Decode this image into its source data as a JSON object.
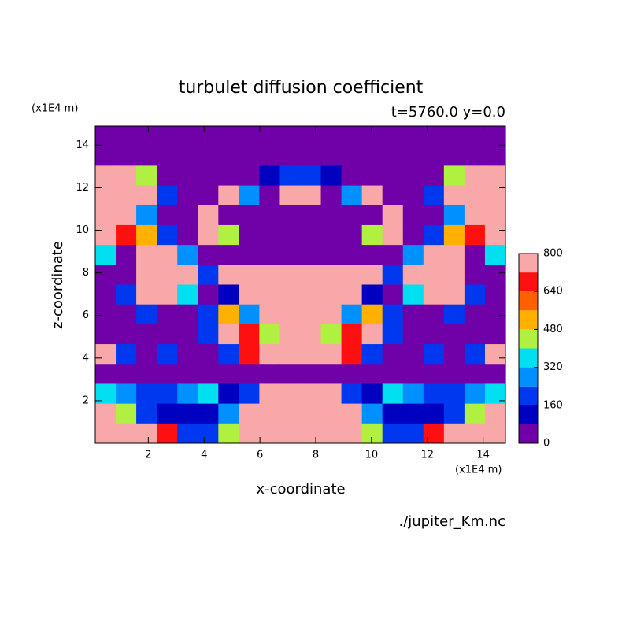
{
  "chart_data": {
    "type": "contour",
    "title": "turbulet diffusion coefficient",
    "subtitle": "t=5760.0 y=0.0",
    "x_label": "x-coordinate",
    "y_label": "z-coordinate",
    "x_unit": "(x1E4 m)",
    "y_unit": "(x1E4 m)",
    "source": "./jupiter_Km.nc",
    "xlim": [
      0.1,
      14.8
    ],
    "ylim": [
      0,
      14.9
    ],
    "xticks": [
      2,
      4,
      6,
      8,
      10,
      12,
      14
    ],
    "yticks": [
      2,
      4,
      6,
      8,
      10,
      12,
      14
    ],
    "levels": [
      0,
      80,
      160,
      240,
      320,
      400,
      480,
      560,
      640,
      720
    ],
    "colors": [
      "#7000a8",
      "#0000c0",
      "#0038f0",
      "#0090ff",
      "#00e0f0",
      "#b0f040",
      "#ffb000",
      "#ff6000",
      "#ff1010",
      "#f8a8a8"
    ],
    "colorbar_lim": [
      0,
      800
    ],
    "colorbar_ticks": [
      0,
      160,
      320,
      480,
      640,
      800
    ],
    "z": [
      [
        0,
        0,
        0,
        0,
        0,
        0,
        0,
        0,
        0,
        0,
        0,
        0,
        0,
        0,
        0,
        0,
        0,
        0,
        0,
        0
      ],
      [
        0,
        0,
        0,
        0,
        0,
        0,
        0,
        0,
        0,
        0,
        0,
        0,
        0,
        0,
        0,
        0,
        0,
        0,
        0,
        0
      ],
      [
        720,
        800,
        400,
        0,
        0,
        0,
        0,
        0,
        80,
        160,
        160,
        80,
        0,
        0,
        0,
        0,
        0,
        400,
        800,
        720
      ],
      [
        800,
        800,
        800,
        160,
        0,
        0,
        800,
        240,
        0,
        800,
        800,
        0,
        240,
        800,
        0,
        0,
        160,
        800,
        800,
        800
      ],
      [
        800,
        800,
        240,
        0,
        0,
        800,
        0,
        0,
        0,
        0,
        0,
        0,
        0,
        0,
        800,
        0,
        0,
        240,
        800,
        800
      ],
      [
        800,
        640,
        480,
        160,
        0,
        800,
        400,
        0,
        0,
        0,
        0,
        0,
        0,
        400,
        800,
        0,
        160,
        480,
        640,
        800
      ],
      [
        320,
        0,
        800,
        800,
        240,
        0,
        0,
        0,
        0,
        0,
        0,
        0,
        0,
        0,
        0,
        240,
        800,
        800,
        0,
        320
      ],
      [
        0,
        0,
        800,
        800,
        800,
        160,
        800,
        800,
        800,
        800,
        800,
        800,
        800,
        800,
        160,
        800,
        800,
        800,
        0,
        0
      ],
      [
        0,
        160,
        800,
        800,
        320,
        0,
        80,
        800,
        800,
        800,
        800,
        800,
        800,
        80,
        0,
        320,
        800,
        800,
        160,
        0
      ],
      [
        0,
        0,
        160,
        0,
        0,
        160,
        480,
        240,
        800,
        800,
        800,
        800,
        240,
        480,
        160,
        0,
        0,
        160,
        0,
        0
      ],
      [
        0,
        0,
        0,
        0,
        0,
        160,
        800,
        640,
        400,
        800,
        800,
        400,
        640,
        800,
        160,
        0,
        0,
        0,
        0,
        0
      ],
      [
        800,
        160,
        0,
        160,
        0,
        0,
        160,
        640,
        800,
        800,
        800,
        800,
        640,
        160,
        0,
        0,
        160,
        0,
        160,
        800
      ],
      [
        0,
        0,
        0,
        0,
        0,
        0,
        0,
        0,
        0,
        0,
        0,
        0,
        0,
        0,
        0,
        0,
        0,
        0,
        0,
        0
      ],
      [
        320,
        240,
        160,
        160,
        240,
        320,
        80,
        160,
        800,
        800,
        800,
        800,
        160,
        80,
        320,
        240,
        160,
        160,
        240,
        320
      ],
      [
        800,
        400,
        160,
        80,
        80,
        80,
        240,
        800,
        800,
        800,
        800,
        800,
        800,
        240,
        80,
        80,
        80,
        160,
        400,
        800
      ],
      [
        800,
        800,
        800,
        640,
        160,
        160,
        400,
        800,
        800,
        800,
        800,
        800,
        800,
        400,
        160,
        160,
        640,
        800,
        800,
        800
      ]
    ]
  }
}
